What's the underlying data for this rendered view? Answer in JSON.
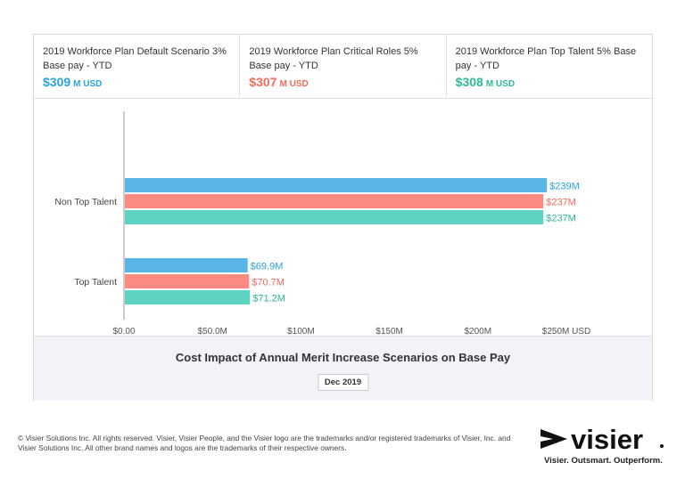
{
  "kpis": [
    {
      "title": "2019 Workforce Plan Default Scenario 3% Base pay - YTD",
      "value": "$309",
      "unit": "M  USD",
      "color": "#29a3d9"
    },
    {
      "title": "2019 Workforce Plan Critical Roles 5% Base pay - YTD",
      "value": "$307",
      "unit": "M  USD",
      "color": "#f26b5b"
    },
    {
      "title": "2019 Workforce Plan Top Talent 5% Base pay - YTD",
      "value": "$308",
      "unit": "M  USD",
      "color": "#2db89c"
    }
  ],
  "chart_data": {
    "type": "bar",
    "orientation": "horizontal",
    "categories": [
      "Non Top Talent",
      "Top Talent"
    ],
    "series": [
      {
        "color": "#5ab4e5",
        "label_color": "#29a3d9",
        "values": [
          239,
          69.9
        ],
        "labels": [
          "$239M",
          "$69.9M"
        ]
      },
      {
        "color": "#fb8a80",
        "label_color": "#f26b5b",
        "values": [
          237,
          70.7
        ],
        "labels": [
          "$237M",
          "$70.7M"
        ]
      },
      {
        "color": "#5ed3c1",
        "label_color": "#2db89c",
        "values": [
          237,
          71.2
        ],
        "labels": [
          "$237M",
          "$71.2M"
        ]
      }
    ],
    "xlim": [
      0,
      250
    ],
    "x_ticks": [
      0,
      50,
      100,
      150,
      200,
      250
    ],
    "x_tick_labels": [
      "$0.00",
      "$50.0M",
      "$100M",
      "$150M",
      "$200M",
      "$250M USD"
    ],
    "title": "Cost Impact of Annual Merit Increase Scenarios on Base Pay",
    "period": "Dec 2019"
  },
  "footer": {
    "copyright": "© Visier Solutions Inc. All rights reserved. Visier, Visier People, and the Visier logo are the trademarks and/or registered trademarks of Visier, Inc. and Visier Solutions Inc. All other brand names and logos are the trademarks of their respective owners.",
    "logo_text": "visier",
    "tagline": "Visier. Outsmart. Outperform."
  }
}
